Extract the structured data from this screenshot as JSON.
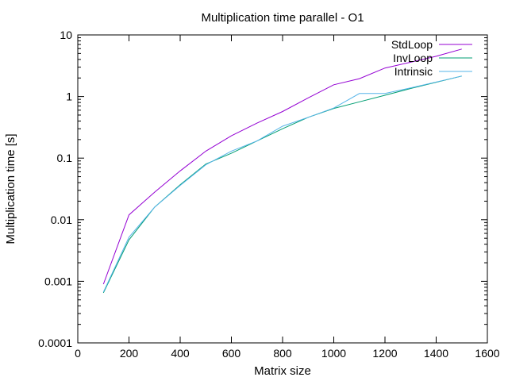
{
  "chart_data": {
    "type": "line",
    "title": "Multiplication time parallel - O1",
    "xlabel": "Matrix size",
    "ylabel": "Multiplication time [s]",
    "xlim": [
      0,
      1600
    ],
    "ylim": [
      0.0001,
      10
    ],
    "yscale": "log",
    "grid": false,
    "legend_position": "top-right",
    "x_ticks": [
      0,
      200,
      400,
      600,
      800,
      1000,
      1200,
      1400,
      1600
    ],
    "x_tick_labels": [
      "0",
      "200",
      "400",
      "600",
      "800",
      "1000",
      "1200",
      "1400",
      "1600"
    ],
    "y_ticks": [
      0.0001,
      0.001,
      0.01,
      0.1,
      1,
      10
    ],
    "y_tick_labels": [
      "0.0001",
      "0.001",
      "0.01",
      "0.1",
      "1",
      "10"
    ],
    "x": [
      100,
      200,
      300,
      400,
      500,
      600,
      700,
      800,
      900,
      1000,
      1100,
      1200,
      1300,
      1400,
      1500
    ],
    "series": [
      {
        "name": "StdLoop",
        "color": "#9400d3",
        "values": [
          0.0009,
          0.012,
          0.028,
          0.062,
          0.13,
          0.23,
          0.37,
          0.57,
          0.95,
          1.55,
          1.95,
          2.9,
          3.6,
          4.5,
          5.9
        ]
      },
      {
        "name": "InvLoop",
        "color": "#009e73",
        "values": [
          0.00065,
          0.0047,
          0.016,
          0.037,
          0.08,
          0.12,
          0.19,
          0.3,
          0.46,
          0.64,
          0.82,
          1.05,
          1.35,
          1.7,
          2.15
        ]
      },
      {
        "name": "Intrinsic",
        "color": "#56b4e9",
        "values": [
          0.00067,
          0.0052,
          0.016,
          0.036,
          0.078,
          0.13,
          0.19,
          0.33,
          0.46,
          0.65,
          1.12,
          1.12,
          1.38,
          1.72,
          2.15
        ]
      }
    ]
  }
}
